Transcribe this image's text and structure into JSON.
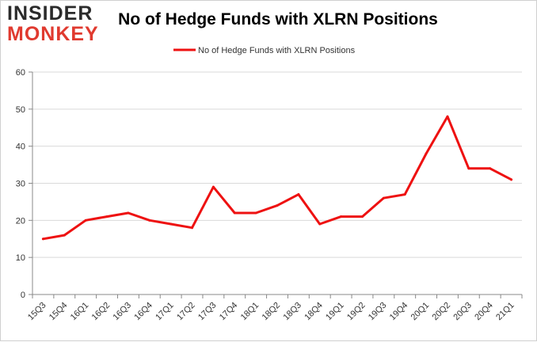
{
  "logo": {
    "line1": "INSIDER",
    "line2": "MONKEY"
  },
  "chart_data": {
    "type": "line",
    "title": "No of Hedge Funds with XLRN Positions",
    "xlabel": "",
    "ylabel": "",
    "categories": [
      "15Q3",
      "15Q4",
      "16Q1",
      "16Q2",
      "16Q3",
      "16Q4",
      "17Q1",
      "17Q2",
      "17Q3",
      "17Q4",
      "18Q1",
      "18Q2",
      "18Q3",
      "18Q4",
      "19Q1",
      "19Q2",
      "19Q3",
      "19Q4",
      "20Q1",
      "20Q2",
      "20Q3",
      "20Q4",
      "21Q1"
    ],
    "series": [
      {
        "name": "No of Hedge Funds with XLRN Positions",
        "values": [
          15,
          16,
          20,
          21,
          22,
          20,
          19,
          18,
          29,
          22,
          22,
          24,
          27,
          19,
          21,
          21,
          26,
          27,
          38,
          48,
          34,
          34,
          31
        ]
      }
    ],
    "ylim": [
      0,
      60
    ],
    "yticks": [
      0,
      10,
      20,
      30,
      40,
      50,
      60
    ],
    "grid": true,
    "legend": "top-center",
    "colors": {
      "line": "#ee1111",
      "grid": "#d9d9d9",
      "axis": "#888888"
    }
  }
}
